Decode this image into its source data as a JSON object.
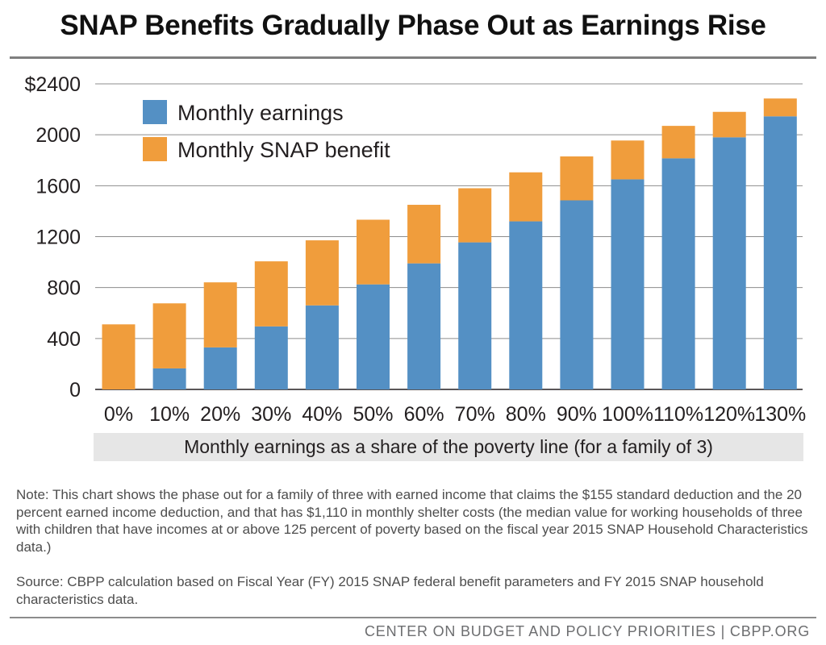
{
  "chart_data": {
    "type": "bar",
    "stacked": true,
    "title": "SNAP Benefits Gradually Phase Out as Earnings Rise",
    "xlabel": "Monthly earnings as a share of the poverty line (for a family of 3)",
    "ylabel": "",
    "categories": [
      "0%",
      "10%",
      "20%",
      "30%",
      "40%",
      "50%",
      "60%",
      "70%",
      "80%",
      "90%",
      "100%",
      "110%",
      "120%",
      "130%"
    ],
    "series": [
      {
        "name": "Monthly earnings",
        "color": "#5490c4",
        "values": [
          0,
          165,
          330,
          495,
          660,
          825,
          990,
          1155,
          1320,
          1485,
          1650,
          1815,
          1980,
          2145
        ]
      },
      {
        "name": "Monthly SNAP benefit",
        "color": "#f09d3c",
        "values": [
          511,
          511,
          511,
          511,
          511,
          508,
          460,
          425,
          385,
          345,
          305,
          255,
          200,
          140
        ]
      }
    ],
    "ylim": [
      0,
      2400
    ],
    "yticks": [
      0,
      400,
      800,
      1200,
      1600,
      2000,
      2400
    ],
    "ytick_labels": [
      "0",
      "400",
      "800",
      "1200",
      "1600",
      "2000",
      "$2400"
    ],
    "grid": true,
    "legend_position": "top-left"
  },
  "note": "Note: This chart shows the phase out for a family of three with earned income that claims the $155 standard deduction and the 20 percent earned income deduction, and that has $1,110 in monthly shelter costs (the median value for working households of three with children that have incomes at or above 125 percent of poverty based on the fiscal year 2015 SNAP Household Characteristics data.)",
  "source": "Source: CBPP calculation based on Fiscal Year (FY) 2015 SNAP federal benefit parameters and FY 2015 SNAP household characteristics data.",
  "footer": "CENTER ON BUDGET AND POLICY PRIORITIES | CBPP.ORG"
}
